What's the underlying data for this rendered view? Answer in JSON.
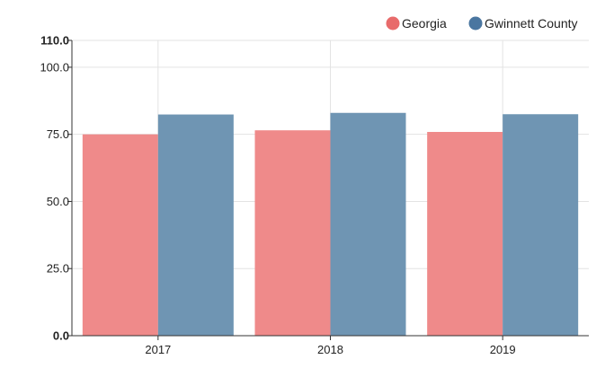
{
  "chart_data": {
    "type": "bar",
    "title": "",
    "xlabel": "",
    "ylabel": "",
    "categories": [
      "2017",
      "2018",
      "2019"
    ],
    "series": [
      {
        "name": "Georgia",
        "values": [
          75.0,
          76.5,
          75.9
        ],
        "color": "#ef8a8a"
      },
      {
        "name": "Gwinnett County",
        "values": [
          82.4,
          83.0,
          82.5
        ],
        "color": "#6f95b3"
      }
    ],
    "legend_marker_colors": [
      "#e86b6b",
      "#4a76a0"
    ],
    "ylim": [
      0,
      110
    ],
    "yticks": [
      {
        "value": 0,
        "label": "0.0",
        "bold": true
      },
      {
        "value": 25,
        "label": "25.0",
        "bold": false
      },
      {
        "value": 50,
        "label": "50.0",
        "bold": false
      },
      {
        "value": 75,
        "label": "75.0",
        "bold": false
      },
      {
        "value": 100,
        "label": "100.0",
        "bold": false
      },
      {
        "value": 110,
        "label": "110.0",
        "bold": true
      }
    ],
    "grid": true,
    "legend_position": "top-right"
  }
}
